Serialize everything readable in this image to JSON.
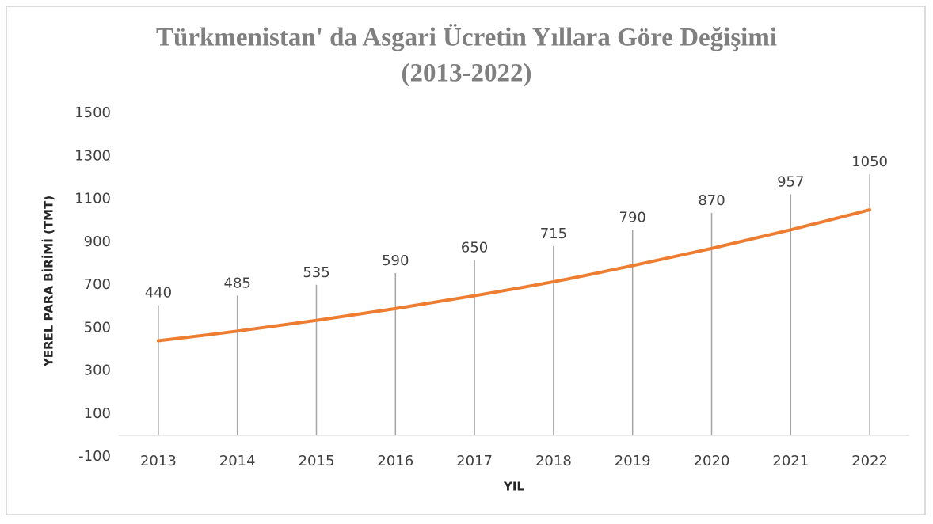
{
  "chart_data": {
    "type": "line",
    "title": [
      "Türkmenistan' da Asgari Ücretin Yıllara Göre Değişimi",
      "(2013-2022)"
    ],
    "x_label": "YIL",
    "y_label": "YEREL PARA BİRİMİ (TMT)",
    "categories": [
      "2013",
      "2014",
      "2015",
      "2016",
      "2017",
      "2018",
      "2019",
      "2020",
      "2021",
      "2022"
    ],
    "values": [
      440,
      485,
      535,
      590,
      650,
      715,
      790,
      870,
      957,
      1050
    ],
    "color": "#ed7d31",
    "ylim": [
      -100,
      1500
    ],
    "yticks": [
      -100,
      100,
      300,
      500,
      700,
      900,
      1100,
      1300,
      1500
    ],
    "grid": false
  }
}
